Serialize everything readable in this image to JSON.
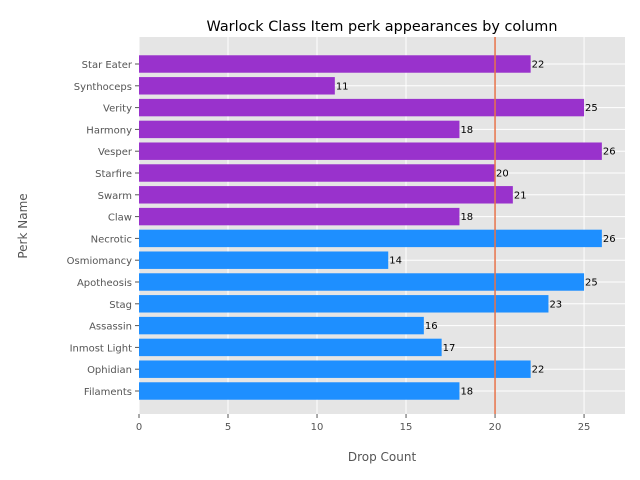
{
  "chart_data": {
    "type": "bar",
    "orientation": "horizontal",
    "title": "Warlock Class Item perk appearances by column",
    "xlabel": "Drop Count",
    "ylabel": "Perk Name",
    "xlim": [
      0,
      27.3
    ],
    "xticks": [
      0,
      5,
      10,
      15,
      20,
      25
    ],
    "grid": true,
    "reference_line": {
      "x": 20,
      "color": "#e8734a"
    },
    "categories": [
      "Filaments",
      "Ophidian",
      "Inmost Light",
      "Assassin",
      "Stag",
      "Apotheosis",
      "Osmiomancy",
      "Necrotic",
      "Claw",
      "Swarm",
      "Starfire",
      "Vesper",
      "Harmony",
      "Verity",
      "Synthoceps",
      "Star Eater"
    ],
    "values": [
      18,
      22,
      17,
      16,
      23,
      25,
      14,
      26,
      18,
      21,
      20,
      26,
      18,
      25,
      11,
      22
    ],
    "colors": [
      "#1e8fff",
      "#1e8fff",
      "#1e8fff",
      "#1e8fff",
      "#1e8fff",
      "#1e8fff",
      "#1e8fff",
      "#1e8fff",
      "#9932cc",
      "#9932cc",
      "#9932cc",
      "#9932cc",
      "#9932cc",
      "#9932cc",
      "#9932cc",
      "#9932cc"
    ]
  }
}
